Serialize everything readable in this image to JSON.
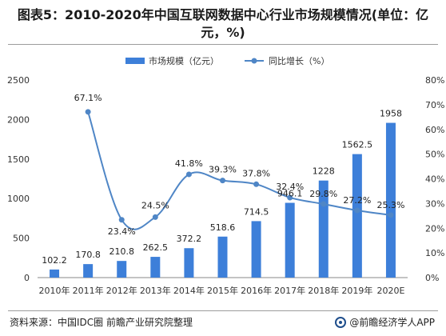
{
  "title_line1": "图表5：2010-2020年中国互联网数据中心行业市场规模情况(单位：亿",
  "title_line2": "元，%)",
  "footer_source": "资料来源：中国IDC圈 前瞻产业研究院整理",
  "footer_brand": "@前瞻经济学人APP",
  "chart_data": {
    "type": "bar+line",
    "categories": [
      "2010年",
      "2011年",
      "2012年",
      "2013年",
      "2014年",
      "2015年",
      "2016年",
      "2017年",
      "2018年",
      "2019年",
      "2020E"
    ],
    "series": [
      {
        "name": "市场规模（亿元）",
        "type": "bar",
        "axis": "left",
        "values": [
          102.2,
          170.8,
          210.8,
          262.5,
          372.2,
          518.6,
          714.5,
          946.1,
          1228,
          1562.5,
          1958
        ],
        "labels": [
          "102.2",
          "170.8",
          "210.8",
          "262.5",
          "372.2",
          "518.6",
          "714.5",
          "946.1",
          "1228",
          "1562.5",
          "1958"
        ],
        "color": "#3d7fd9"
      },
      {
        "name": "同比增长（%）",
        "type": "line",
        "axis": "right",
        "values": [
          null,
          67.1,
          23.4,
          24.5,
          41.8,
          39.3,
          37.8,
          32.4,
          29.8,
          27.2,
          25.3
        ],
        "labels": [
          "",
          "67.1%",
          "23.4%",
          "24.5%",
          "41.8%",
          "39.3%",
          "37.8%",
          "32.4%",
          "29.8%",
          "27.2%",
          "25.3%"
        ],
        "color": "#4f86c6"
      }
    ],
    "yleft": {
      "min": 0,
      "max": 2500,
      "ticks": [
        0,
        500,
        1000,
        1500,
        2000,
        2500
      ],
      "tick_labels": [
        "0",
        "500",
        "1000",
        "1500",
        "2000",
        "2500"
      ]
    },
    "yright": {
      "min": 0,
      "max": 80,
      "ticks": [
        0,
        10,
        20,
        30,
        40,
        50,
        60,
        70,
        80
      ],
      "tick_labels": [
        "0%",
        "10%",
        "20%",
        "30%",
        "40%",
        "50%",
        "60%",
        "70%",
        "80%"
      ]
    },
    "legend": {
      "position": "top-center"
    },
    "grid": false
  }
}
